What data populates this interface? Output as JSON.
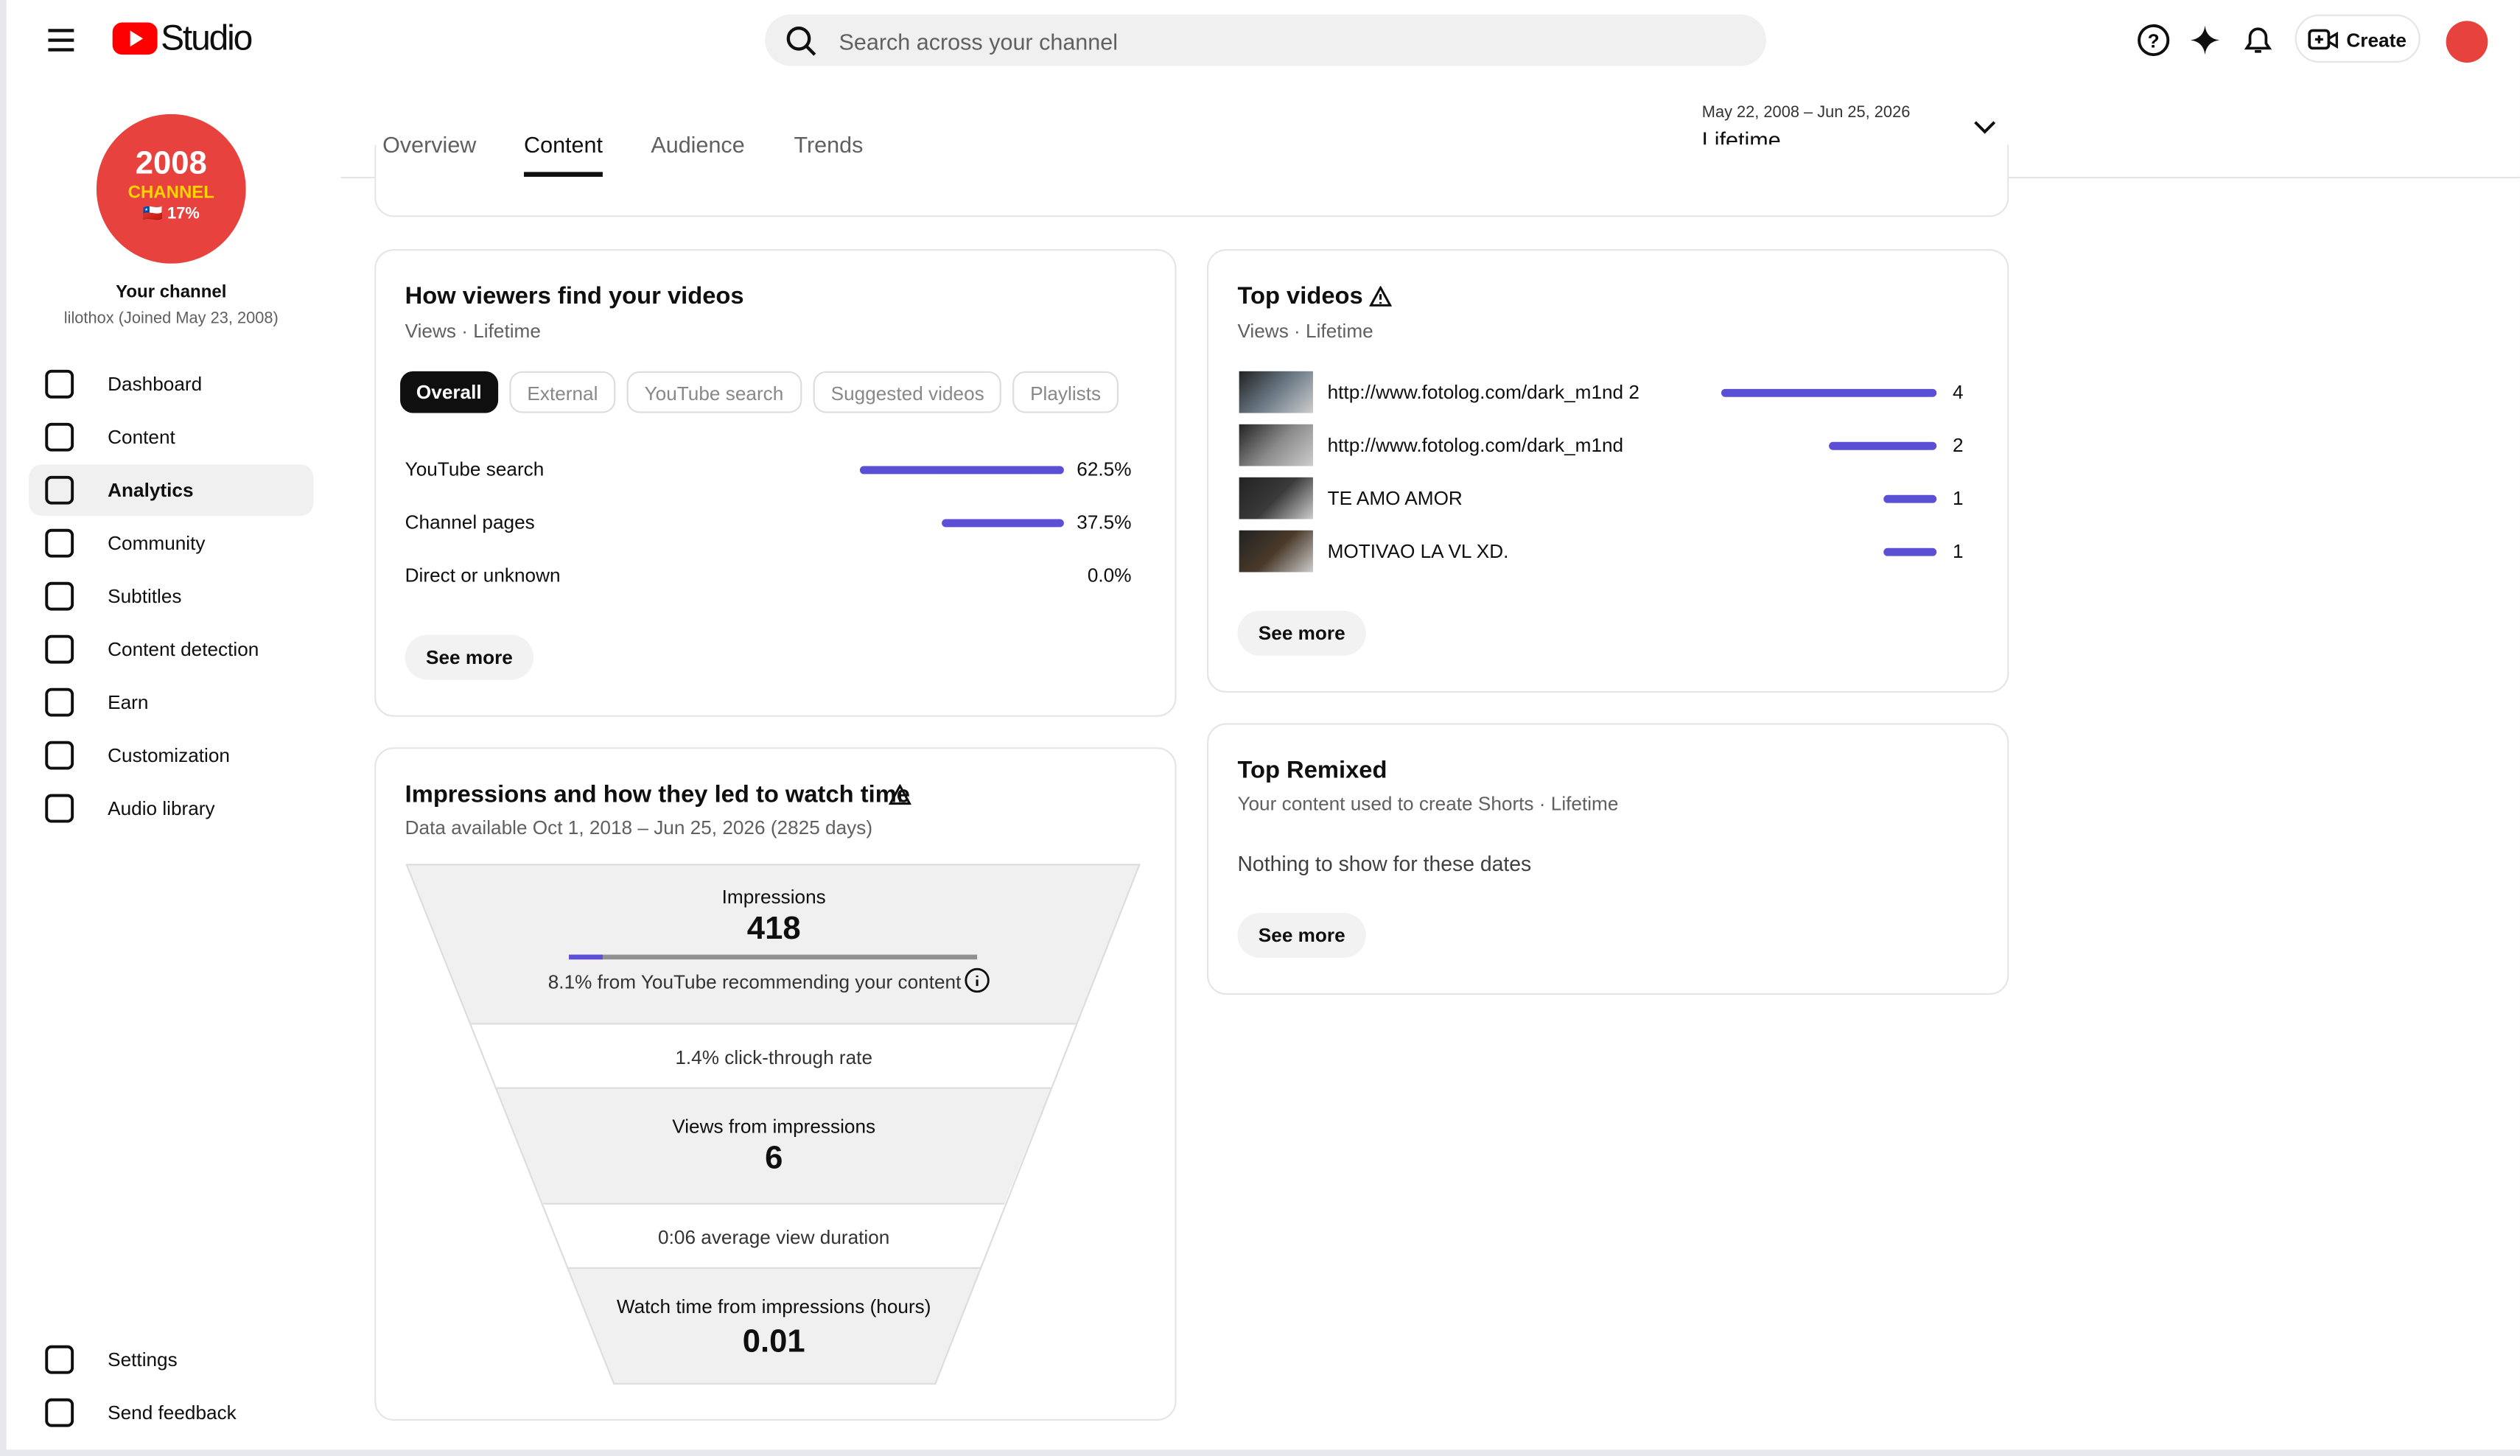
{
  "header": {
    "logo": "Studio",
    "search_placeholder": "Search across your channel",
    "create": "Create"
  },
  "sidebar": {
    "avatar_lines": [
      "2008",
      "CHANNEL",
      "🇨🇱 17%"
    ],
    "channel_title": "Your channel",
    "channel_sub": "lilothox (Joined May 23, 2008)",
    "nav": [
      "Dashboard",
      "Content",
      "Analytics",
      "Community",
      "Subtitles",
      "Content detection",
      "Earn",
      "Customization",
      "Audio library"
    ],
    "active_index": 2,
    "footer_nav": [
      "Settings",
      "Send feedback"
    ]
  },
  "tabs": {
    "items": [
      "Overview",
      "Content",
      "Audience",
      "Trends"
    ],
    "selected": 1
  },
  "date_range": {
    "dates": "May 22, 2008 – Jun 25, 2026",
    "period": "Lifetime"
  },
  "traffic_card": {
    "title": "How viewers find your videos",
    "subtitle": "Views · Lifetime",
    "chips": [
      "Overall",
      "External",
      "YouTube search",
      "Suggested videos",
      "Playlists"
    ],
    "selected_chip": 0,
    "rows": [
      {
        "name": "YouTube search",
        "value": 62.5,
        "value_label": "62.5%"
      },
      {
        "name": "Channel pages",
        "value": 37.5,
        "value_label": "37.5%"
      },
      {
        "name": "Direct or unknown",
        "value": 0.0,
        "value_label": "0.0%"
      }
    ],
    "see_more": "See more"
  },
  "top_videos": {
    "title": "Top videos",
    "subtitle": "Views · Lifetime",
    "rows": [
      {
        "title": "http://www.fotolog.com/dark_m1nd 2",
        "views": 4
      },
      {
        "title": "http://www.fotolog.com/dark_m1nd",
        "views": 2
      },
      {
        "title": "TE AMO AMOR",
        "views": 1
      },
      {
        "title": "MOTIVAO LA VL XD.",
        "views": 1
      }
    ],
    "see_more": "See more"
  },
  "funnel": {
    "title": "Impressions and how they led to watch time",
    "subtitle": "Data available Oct 1, 2018 – Jun 25, 2026 (2825 days)",
    "impressions_label": "Impressions",
    "impressions": 418,
    "recommend_note": "8.1% from YouTube recommending your content",
    "ctr": "1.4% click-through rate",
    "views_label": "Views from impressions",
    "views": 6,
    "avg_duration": "0:06 average view duration",
    "watch_label": "Watch time from impressions (hours)",
    "watch_time": 0.01
  },
  "top_remixed": {
    "title": "Top Remixed",
    "subtitle": "Your content used to create Shorts · Lifetime",
    "empty": "Nothing to show for these dates",
    "see_more": "See more"
  }
}
